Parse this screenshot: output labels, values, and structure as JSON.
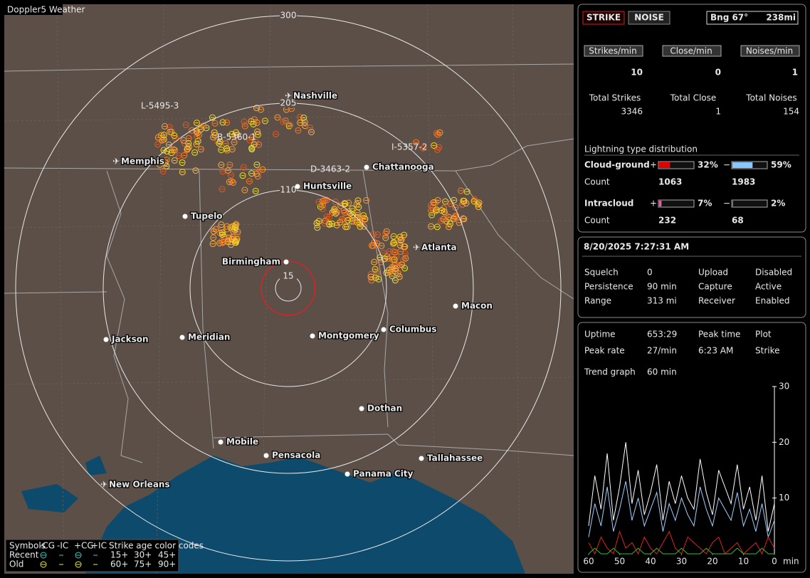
{
  "map": {
    "badge": "Doppler5 Weather",
    "rings": [
      "300",
      "205",
      "110",
      "15"
    ],
    "cities": [
      "Nashville",
      "Memphis",
      "Chattanooga",
      "Huntsville",
      "Tupelo",
      "Atlanta",
      "Birmingham",
      "Macon",
      "Jackson",
      "Meridian",
      "Montgomery",
      "Columbus",
      "Dothan",
      "Mobile",
      "Pensacola",
      "Tallahassee",
      "Panama City",
      "New Orleans"
    ],
    "storms": [
      "L-5495-3",
      "B-5360-1",
      "I-5357-2",
      "D-3463-2"
    ],
    "legend": {
      "symbols": "Symbols",
      "types": [
        "-CG",
        "-IC",
        "+CG",
        "+IC"
      ],
      "age_title": "Strike age color codes",
      "recent": "Recent",
      "old": "Old",
      "recent_ages": [
        "15+",
        "30+",
        "45+"
      ],
      "old_ages": [
        "60+",
        "75+",
        "90+"
      ]
    }
  },
  "status": {
    "buttons": [
      "STRIKE",
      "NOISE"
    ],
    "bearing": "Bng 67°",
    "distance": "238mi",
    "rates": [
      {
        "label": "Strikes/min",
        "value": "10"
      },
      {
        "label": "Close/min",
        "value": "0"
      },
      {
        "label": "Noises/min",
        "value": "1"
      }
    ],
    "totals": [
      {
        "label": "Total Strikes",
        "value": "3346"
      },
      {
        "label": "Total Close",
        "value": "1"
      },
      {
        "label": "Total Noises",
        "value": "154"
      }
    ],
    "distribution": {
      "title": "Lightning type distribution",
      "count_label": "Count",
      "rows": [
        {
          "name": "Cloud-ground",
          "pos_sign": "+",
          "pos": {
            "value": 32,
            "label": "32%"
          },
          "neg_sign": "−",
          "neg": {
            "value": 59,
            "label": "59%"
          },
          "pos_count": "1063",
          "neg_count": "1983"
        },
        {
          "name": "Intracloud",
          "pos_sign": "+",
          "pos": {
            "value": 7,
            "label": "7%"
          },
          "neg_sign": "−",
          "neg": {
            "value": 2,
            "label": "2%"
          },
          "pos_count": "232",
          "neg_count": "68"
        }
      ]
    }
  },
  "info": {
    "datetime": "8/20/2025 7:27:31 AM",
    "left": [
      [
        "Squelch",
        "0"
      ],
      [
        "Persistence",
        "90 min"
      ],
      [
        "Range",
        "313 mi"
      ]
    ],
    "right": [
      [
        "Upload",
        "Disabled"
      ],
      [
        "Capture",
        "Active"
      ],
      [
        "Receiver",
        "Enabled"
      ]
    ]
  },
  "stats": {
    "items": [
      [
        "Uptime",
        "653:29"
      ],
      [
        "Peak rate",
        "27/min"
      ],
      [
        "Peak time",
        "6:23 AM"
      ],
      [
        "Plot",
        "Strike"
      ],
      [
        "Trend graph",
        "60 min"
      ]
    ]
  },
  "chart_data": {
    "type": "line",
    "x": [
      60,
      58,
      56,
      54,
      52,
      50,
      48,
      46,
      44,
      42,
      40,
      38,
      36,
      34,
      32,
      30,
      28,
      26,
      24,
      22,
      20,
      18,
      16,
      14,
      12,
      10,
      8,
      6,
      4,
      2,
      0
    ],
    "xlim": [
      60,
      0
    ],
    "xticks": [
      60,
      50,
      40,
      30,
      20,
      10,
      0
    ],
    "x_unit": "min",
    "ylim": [
      0,
      30
    ],
    "yticks": [
      10,
      20,
      30
    ],
    "series": [
      {
        "color": "#ffffff",
        "values": [
          5,
          14,
          8,
          18,
          6,
          12,
          20,
          9,
          15,
          7,
          11,
          16,
          6,
          13,
          9,
          14,
          10,
          8,
          17,
          11,
          7,
          15,
          12,
          9,
          16,
          8,
          12,
          6,
          14,
          4,
          9
        ]
      },
      {
        "color": "#9fd0ff",
        "values": [
          3,
          9,
          5,
          12,
          4,
          8,
          13,
          6,
          10,
          5,
          8,
          11,
          4,
          9,
          6,
          10,
          7,
          5,
          12,
          8,
          5,
          10,
          8,
          6,
          11,
          5,
          8,
          4,
          9,
          3,
          6
        ]
      },
      {
        "color": "#e02020",
        "values": [
          2,
          0,
          3,
          1,
          0,
          4,
          1,
          2,
          0,
          3,
          1,
          0,
          2,
          4,
          1,
          0,
          3,
          2,
          1,
          0,
          2,
          3,
          0,
          1,
          2,
          0,
          1,
          2,
          0,
          3,
          1
        ]
      },
      {
        "color": "#30c030",
        "values": [
          0,
          1,
          0,
          0,
          1,
          0,
          0,
          0,
          1,
          0,
          0,
          1,
          0,
          0,
          0,
          1,
          0,
          0,
          0,
          1,
          0,
          0,
          0,
          0,
          1,
          0,
          0,
          0,
          1,
          0,
          0
        ]
      }
    ]
  }
}
